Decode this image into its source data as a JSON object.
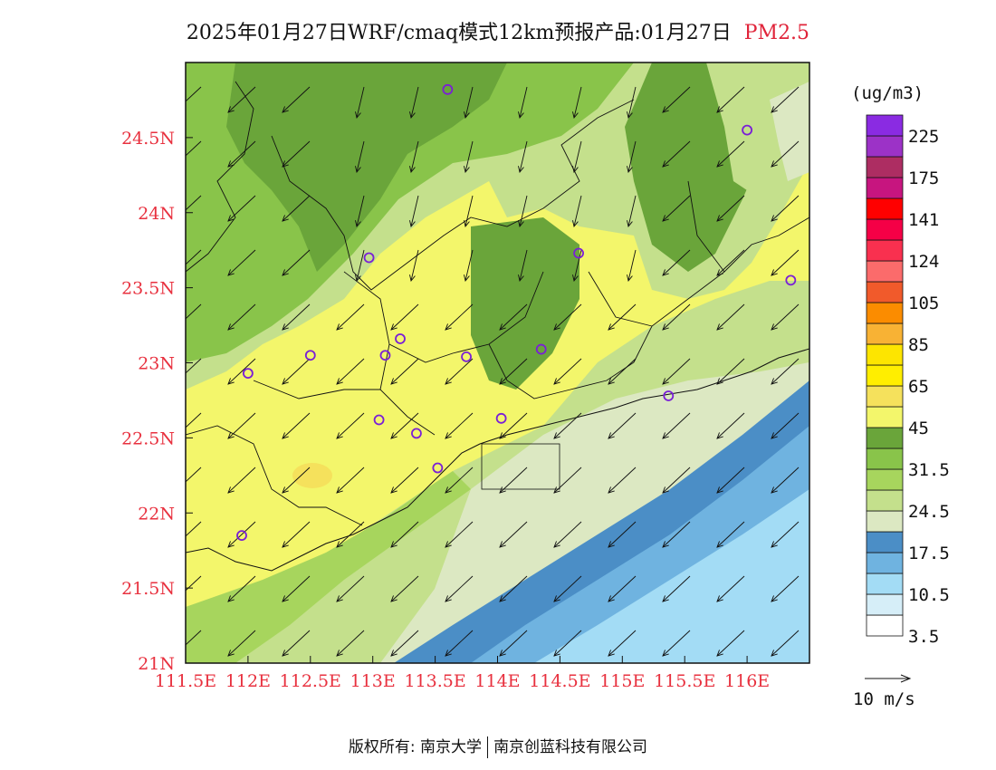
{
  "title": {
    "main": "2025年01月27日WRF/cmaq模式12km预报产品:01月27日",
    "pollutant": "PM2.5"
  },
  "map": {
    "lon_range": [
      111.5,
      116.5
    ],
    "lat_range": [
      21.0,
      25.0
    ],
    "lat_ticks": [
      {
        "value": 24.5,
        "label": "24.5N"
      },
      {
        "value": 24.0,
        "label": "24N"
      },
      {
        "value": 23.5,
        "label": "23.5N"
      },
      {
        "value": 23.0,
        "label": "23N"
      },
      {
        "value": 22.5,
        "label": "22.5N"
      },
      {
        "value": 22.0,
        "label": "22N"
      },
      {
        "value": 21.5,
        "label": "21.5N"
      },
      {
        "value": 21.0,
        "label": "21N"
      }
    ],
    "lon_ticks": [
      {
        "value": 111.5,
        "label": "111.5E"
      },
      {
        "value": 112.0,
        "label": "112E"
      },
      {
        "value": 112.5,
        "label": "112.5E"
      },
      {
        "value": 113.0,
        "label": "113E"
      },
      {
        "value": 113.5,
        "label": "113.5E"
      },
      {
        "value": 114.0,
        "label": "114E"
      },
      {
        "value": 114.5,
        "label": "114.5E"
      },
      {
        "value": 115.0,
        "label": "115E"
      },
      {
        "value": 115.5,
        "label": "115.5E"
      },
      {
        "value": 116.0,
        "label": "116E"
      }
    ],
    "stations": [
      {
        "lon": 113.6,
        "lat": 24.82
      },
      {
        "lon": 116.0,
        "lat": 24.55
      },
      {
        "lon": 112.97,
        "lat": 23.7
      },
      {
        "lon": 114.65,
        "lat": 23.73
      },
      {
        "lon": 116.35,
        "lat": 23.55
      },
      {
        "lon": 112.5,
        "lat": 23.05
      },
      {
        "lon": 112.0,
        "lat": 22.93
      },
      {
        "lon": 113.1,
        "lat": 23.05
      },
      {
        "lon": 113.22,
        "lat": 23.16
      },
      {
        "lon": 113.75,
        "lat": 23.04
      },
      {
        "lon": 114.35,
        "lat": 23.09
      },
      {
        "lon": 115.37,
        "lat": 22.78
      },
      {
        "lon": 113.05,
        "lat": 22.62
      },
      {
        "lon": 113.35,
        "lat": 22.53
      },
      {
        "lon": 114.03,
        "lat": 22.63
      },
      {
        "lon": 113.52,
        "lat": 22.3
      },
      {
        "lon": 111.95,
        "lat": 21.85
      }
    ],
    "wind_ref_label": "10 m/s",
    "station_color": "#7a1fd6"
  },
  "colorbar": {
    "unit": "(ug/m3)",
    "colors": [
      "#ffffff",
      "#d6eef8",
      "#a3dcf5",
      "#6fb3e0",
      "#4b8ec6",
      "#dce8c2",
      "#c4e08c",
      "#a7d55d",
      "#89c44a",
      "#6aa53a",
      "#f3f66b",
      "#f5e15c",
      "#ffee00",
      "#fde500",
      "#f8b234",
      "#fb8c00",
      "#f15a2b",
      "#fb6b6b",
      "#f9304f",
      "#f50046",
      "#ff0000",
      "#c7157f",
      "#ad2d62",
      "#9c32c7",
      "#8a2be2"
    ],
    "labels": [
      {
        "text": "225",
        "slot": 1
      },
      {
        "text": "175",
        "slot": 3
      },
      {
        "text": "141",
        "slot": 5
      },
      {
        "text": "124",
        "slot": 7
      },
      {
        "text": "105",
        "slot": 9
      },
      {
        "text": "85",
        "slot": 11
      },
      {
        "text": "65",
        "slot": 13
      },
      {
        "text": "45",
        "slot": 15
      },
      {
        "text": "31.5",
        "slot": 17
      },
      {
        "text": "24.5",
        "slot": 19
      },
      {
        "text": "17.5",
        "slot": 21
      },
      {
        "text": "10.5",
        "slot": 23
      },
      {
        "text": "3.5",
        "slot": 25
      }
    ]
  },
  "copyright": {
    "prefix": "版权所有: 南京大学",
    "org2": "南京创蓝科技有限公司"
  }
}
